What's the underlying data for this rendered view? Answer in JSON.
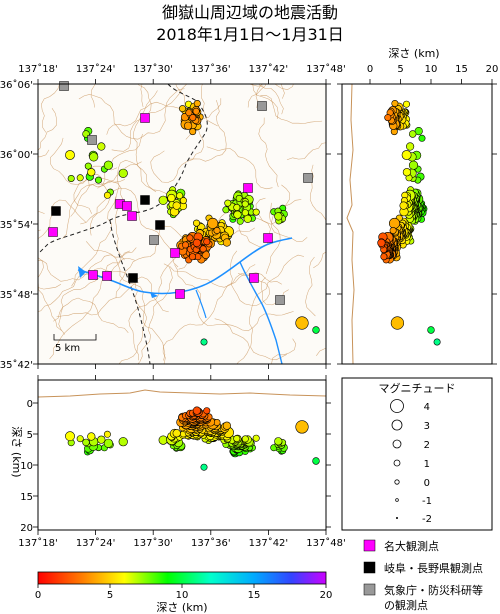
{
  "title": {
    "line1": "御嶽山周辺域の地震活動",
    "line2": "2018年1月1日〜1月31日"
  },
  "map": {
    "lon_ticks": [
      "137˚18'",
      "137˚24'",
      "137˚30'",
      "137˚36'",
      "137˚42'",
      "137˚48'"
    ],
    "lat_ticks": [
      "36˚06'",
      "36˚00'",
      "35˚54'",
      "35˚48'",
      "35˚42'"
    ],
    "scale_label": "5 km"
  },
  "depth_side": {
    "title": "深さ (km)",
    "ticks": [
      "0",
      "5",
      "10",
      "15",
      "20"
    ]
  },
  "depth_bottom": {
    "ylabel": "深さ (km)",
    "ticks": [
      "0",
      "5",
      "10",
      "15",
      "20"
    ],
    "lon_ticks": [
      "137˚18'",
      "137˚24'",
      "137˚30'",
      "137˚36'",
      "137˚42'",
      "137˚48'"
    ]
  },
  "magnitude_legend": {
    "title": "マグニチュード",
    "levels": [
      "4",
      "3",
      "2",
      "1",
      "0",
      "-1",
      "-2"
    ]
  },
  "station_legend": {
    "nagoya": "名大観測点",
    "gifu_nagano": "岐阜・長野県観測点",
    "jma_line1": "気象庁・防災科研等",
    "jma_line2": "の観測点"
  },
  "colorbar": {
    "label": "深さ (km)",
    "ticks": [
      "0",
      "5",
      "10",
      "15",
      "20"
    ]
  },
  "colors": {
    "nagoya_station": "#ff00ff",
    "gifu_station": "#000000",
    "jma_station": "#999999",
    "river": "#1e90ff",
    "contour": "#c8935a"
  }
}
